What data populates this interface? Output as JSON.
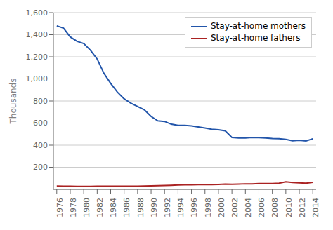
{
  "chart_data": {
    "type": "line",
    "x": [
      1976,
      1977,
      1978,
      1979,
      1980,
      1981,
      1982,
      1983,
      1984,
      1985,
      1986,
      1987,
      1988,
      1989,
      1990,
      1991,
      1992,
      1993,
      1994,
      1995,
      1996,
      1997,
      1998,
      1999,
      2000,
      2001,
      2002,
      2003,
      2004,
      2005,
      2006,
      2007,
      2008,
      2009,
      2010,
      2011,
      2012,
      2013,
      2014
    ],
    "series": [
      {
        "name": "Stay-at-home mothers",
        "color": "#2255aa",
        "values": [
          1480,
          1460,
          1380,
          1340,
          1320,
          1260,
          1180,
          1050,
          960,
          880,
          820,
          780,
          750,
          720,
          660,
          620,
          615,
          590,
          580,
          580,
          575,
          565,
          555,
          545,
          540,
          530,
          470,
          465,
          465,
          470,
          468,
          465,
          460,
          458,
          453,
          440,
          445,
          438,
          458
        ]
      },
      {
        "name": "Stay-at-home fathers",
        "color": "#aa2222",
        "values": [
          30,
          29,
          28,
          27,
          27,
          27,
          28,
          29,
          29,
          29,
          29,
          29,
          29,
          30,
          32,
          34,
          35,
          37,
          40,
          42,
          42,
          43,
          43,
          43,
          45,
          48,
          46,
          48,
          50,
          50,
          53,
          53,
          53,
          56,
          68,
          62,
          58,
          56,
          63
        ]
      }
    ],
    "ylabel": "Thousands",
    "xlim": [
      1975.5,
      2014.5
    ],
    "xticks": [
      1976,
      1978,
      1980,
      1982,
      1984,
      1986,
      1988,
      1990,
      1992,
      1994,
      1996,
      1998,
      2000,
      2002,
      2004,
      2006,
      2008,
      2010,
      2012,
      2014
    ],
    "ylim": [
      0,
      1600
    ],
    "yticks": [
      200,
      400,
      600,
      800,
      {
        "value": 1000,
        "label": "1,000"
      },
      {
        "value": 1200,
        "label": "1,200"
      },
      {
        "value": 1400,
        "label": "1,400"
      },
      {
        "value": 1600,
        "label": "1,600"
      }
    ],
    "grid": "y",
    "legend": "upper right"
  }
}
